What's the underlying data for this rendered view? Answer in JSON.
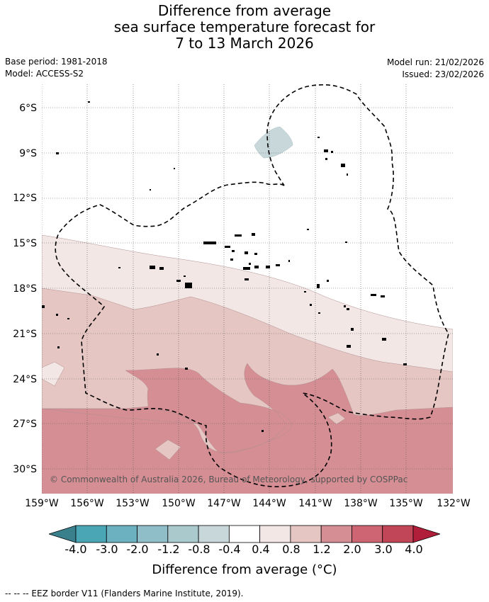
{
  "title": {
    "line1": "Difference from average",
    "line2": "sea surface temperature forecast for",
    "line3": "7 to 13 March 2026"
  },
  "meta": {
    "base_period": "Base period: 1981-2018",
    "model": "Model: ACCESS-S2",
    "model_run": "Model run: 21/02/2026",
    "issued": "Issued: 23/02/2026"
  },
  "map": {
    "y_ticks": [
      "6°S",
      "9°S",
      "12°S",
      "15°S",
      "18°S",
      "21°S",
      "24°S",
      "27°S",
      "30°S"
    ],
    "x_ticks": [
      "159°W",
      "156°W",
      "153°W",
      "150°W",
      "147°W",
      "144°W",
      "141°W",
      "138°W",
      "135°W",
      "132°W"
    ],
    "copyright": "© Commonwealth of Australia 2026, Bureau of Meteorology, supported by COSPPac"
  },
  "colorbar": {
    "title": "Difference from average (°C)",
    "ticks": [
      "-4.0",
      "-3.0",
      "-2.0",
      "-1.2",
      "-0.8",
      "-0.4",
      "0.4",
      "0.8",
      "1.2",
      "2.0",
      "3.0",
      "4.0"
    ],
    "colors": [
      "#3a808c",
      "#4aa5b5",
      "#6cb1c0",
      "#8fbdc8",
      "#a9c9cc",
      "#c8d7da",
      "#ffffff",
      "#f3e7e6",
      "#e6c6c3",
      "#d58e94",
      "#cd6672",
      "#c04658",
      "#b01e3a"
    ]
  },
  "footnote": "-- -- -- EEZ border V11 (Flanders Marine Institute, 2019)."
}
